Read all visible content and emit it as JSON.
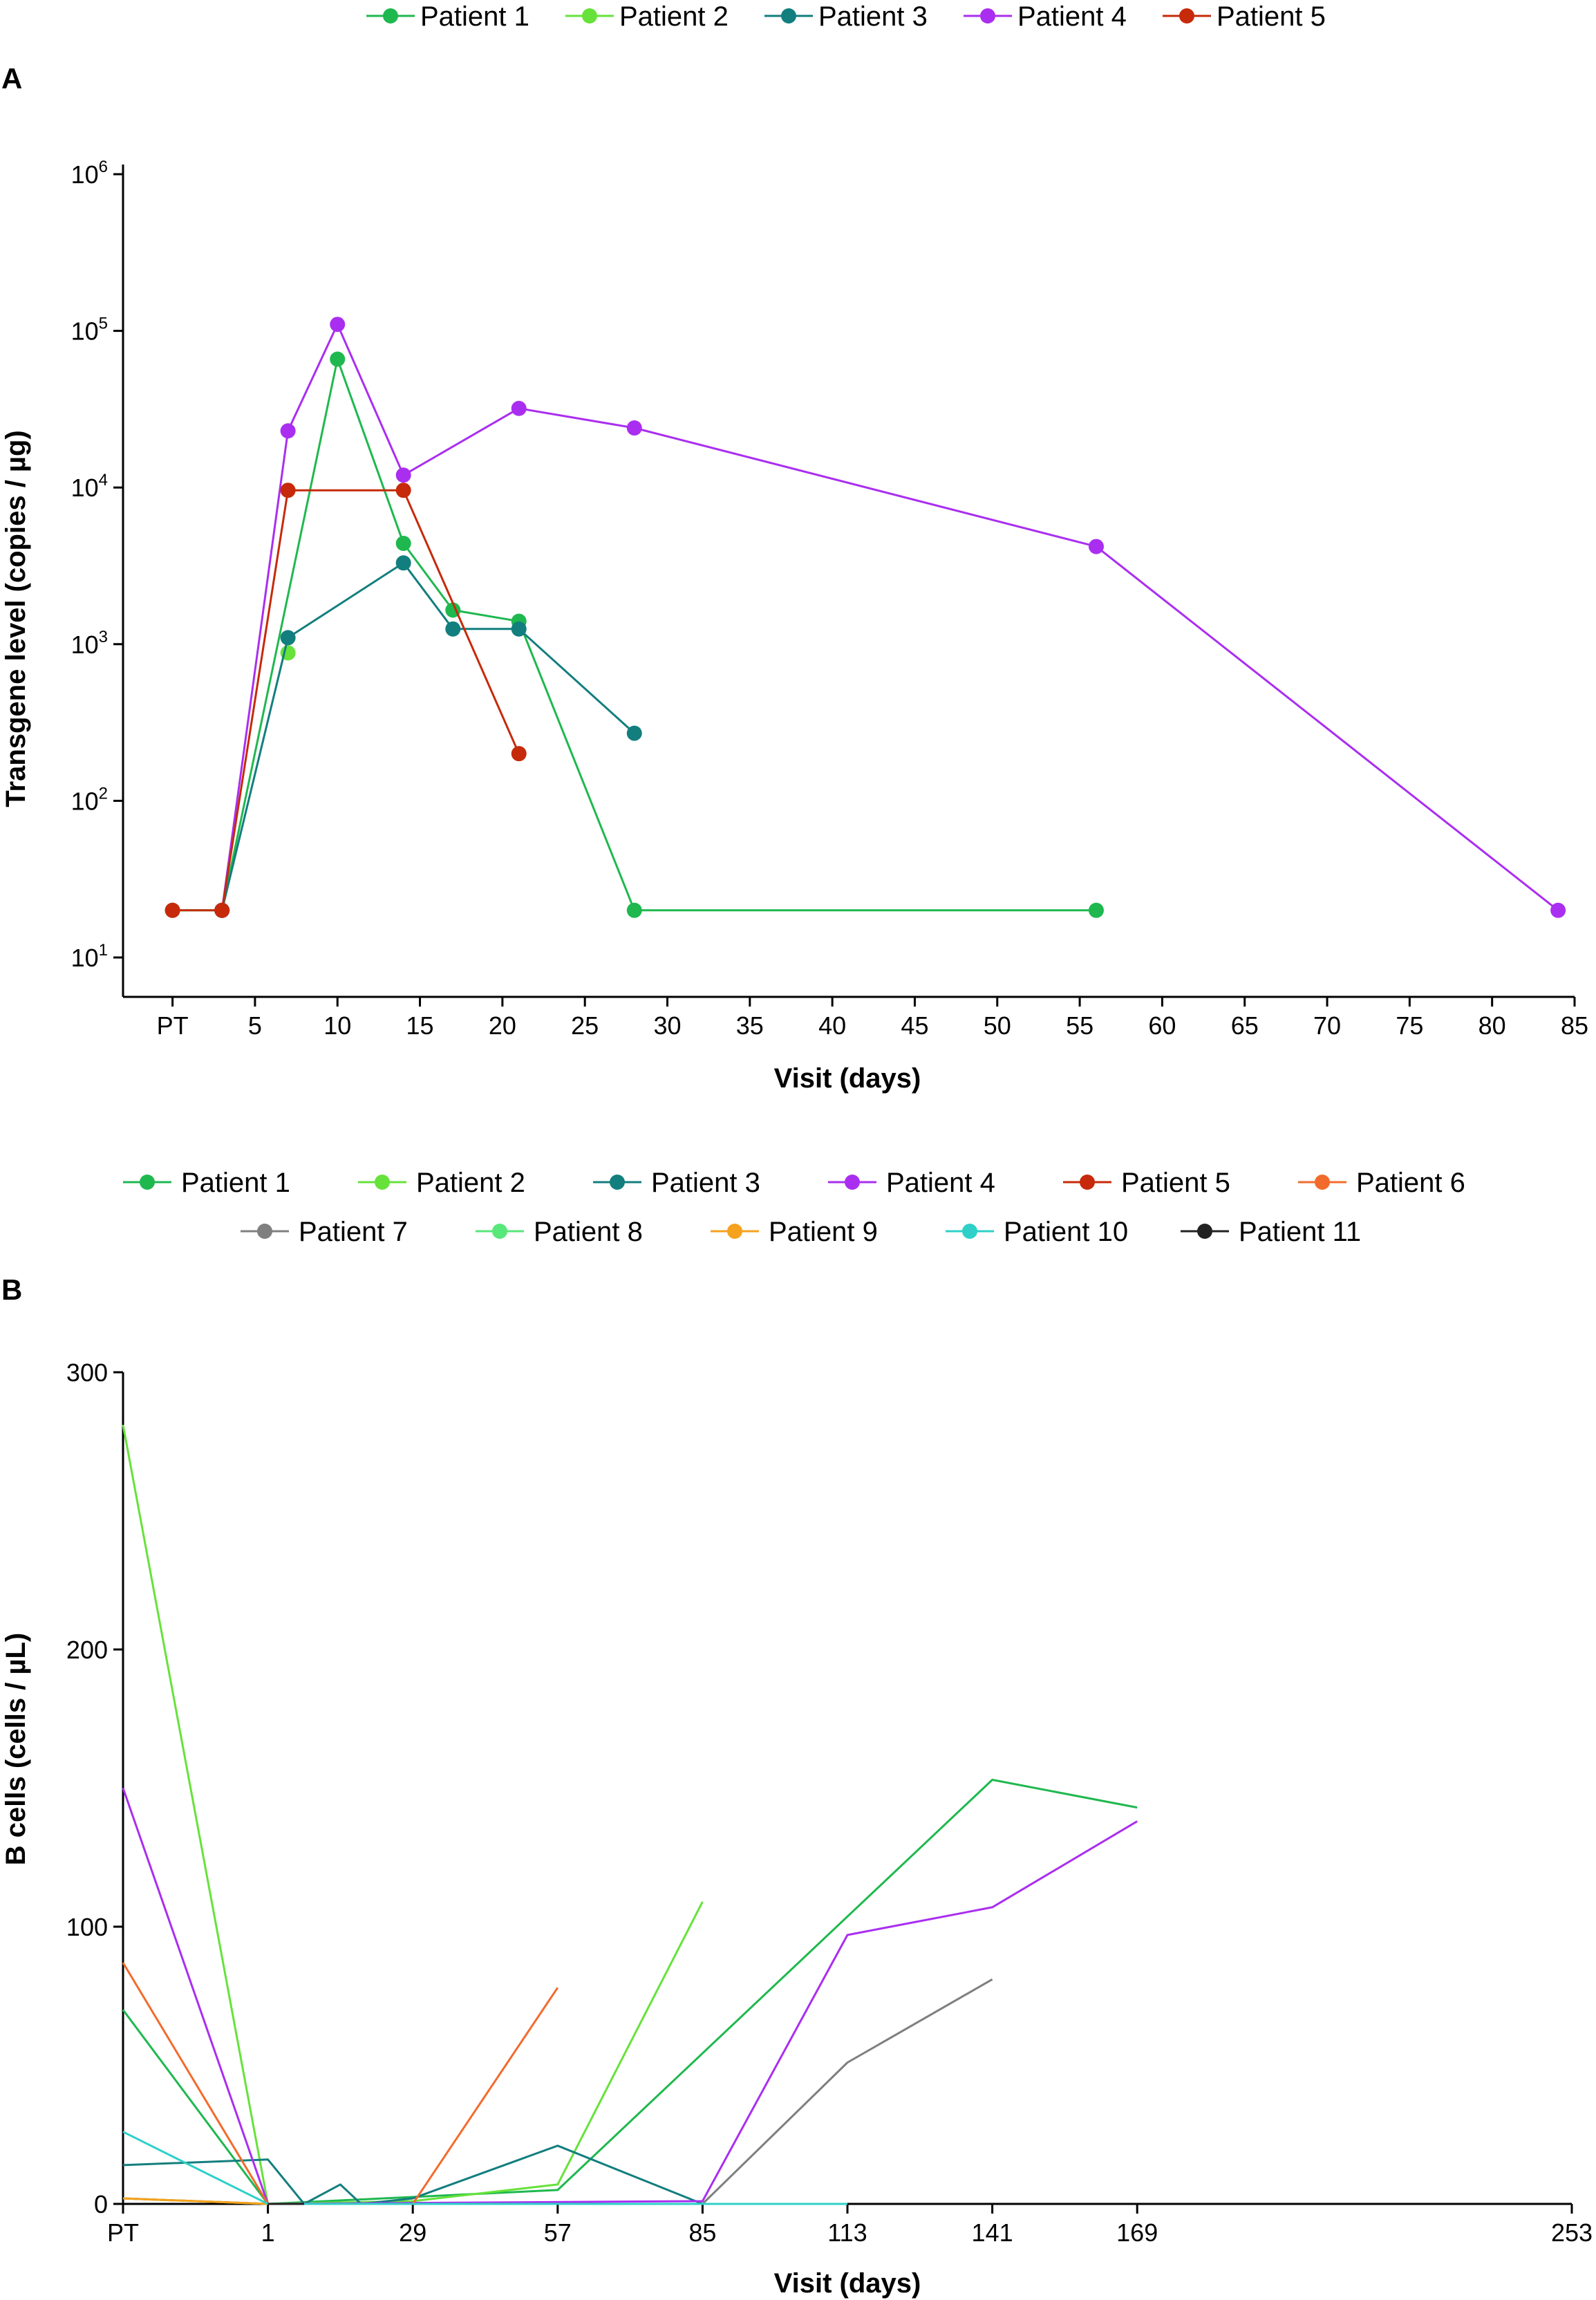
{
  "chart_data": [
    {
      "panel_label": "A",
      "type": "line",
      "scale": "log",
      "xlabel": "Visit (days)",
      "ylabel": "Transgene level (copies / µg)",
      "xlim": [
        -3,
        85
      ],
      "ylim": [
        10,
        1000000
      ],
      "x_ticks": [
        {
          "value": 0,
          "label": "PT"
        },
        {
          "value": 5,
          "label": "5"
        },
        {
          "value": 10,
          "label": "10"
        },
        {
          "value": 15,
          "label": "15"
        },
        {
          "value": 20,
          "label": "20"
        },
        {
          "value": 25,
          "label": "25"
        },
        {
          "value": 30,
          "label": "30"
        },
        {
          "value": 35,
          "label": "35"
        },
        {
          "value": 40,
          "label": "40"
        },
        {
          "value": 45,
          "label": "45"
        },
        {
          "value": 50,
          "label": "50"
        },
        {
          "value": 55,
          "label": "55"
        },
        {
          "value": 60,
          "label": "60"
        },
        {
          "value": 65,
          "label": "65"
        },
        {
          "value": 70,
          "label": "70"
        },
        {
          "value": 75,
          "label": "75"
        },
        {
          "value": 80,
          "label": "80"
        },
        {
          "value": 85,
          "label": "85"
        }
      ],
      "y_ticks": [
        {
          "value": 10,
          "base": "10",
          "exp": "1"
        },
        {
          "value": 100,
          "base": "10",
          "exp": "2"
        },
        {
          "value": 1000,
          "base": "10",
          "exp": "3"
        },
        {
          "value": 10000,
          "base": "10",
          "exp": "4"
        },
        {
          "value": 100000,
          "base": "10",
          "exp": "5"
        },
        {
          "value": 1000000,
          "base": "10",
          "exp": "6"
        }
      ],
      "legend_position": "top",
      "series": [
        {
          "name": "Patient 1",
          "color": "#1fb84f",
          "markers": true,
          "x": [
            0,
            3,
            10,
            14,
            17,
            21,
            28,
            56
          ],
          "y": [
            20,
            20,
            66000,
            4400,
            1650,
            1400,
            20,
            20
          ]
        },
        {
          "name": "Patient 2",
          "color": "#66e23a",
          "markers": true,
          "x": [
            7
          ],
          "y": [
            880
          ]
        },
        {
          "name": "Patient 3",
          "color": "#137e7e",
          "markers": true,
          "x": [
            3,
            7,
            14,
            17,
            21,
            28
          ],
          "y": [
            20,
            1100,
            3300,
            1250,
            1250,
            270
          ]
        },
        {
          "name": "Patient 4",
          "color": "#aa2ef0",
          "markers": true,
          "x": [
            3,
            7,
            10,
            14,
            21,
            28,
            56,
            84
          ],
          "y": [
            20,
            23000,
            110000,
            12000,
            32000,
            24000,
            4200,
            20
          ]
        },
        {
          "name": "Patient 5",
          "color": "#c62a0a",
          "markers": true,
          "x": [
            0,
            3,
            7,
            14,
            21
          ],
          "y": [
            20,
            20,
            9600,
            9600,
            200
          ]
        }
      ]
    },
    {
      "panel_label": "B",
      "type": "line",
      "scale": "linear",
      "xlabel": "Visit (days)",
      "ylabel": "B cells (cells / µL)",
      "xlim": [
        -27,
        253
      ],
      "ylim": [
        0,
        300
      ],
      "x_ticks": [
        {
          "value": -27,
          "label": "PT"
        },
        {
          "value": 1,
          "label": "1"
        },
        {
          "value": 29,
          "label": "29"
        },
        {
          "value": 57,
          "label": "57"
        },
        {
          "value": 85,
          "label": "85"
        },
        {
          "value": 113,
          "label": "113"
        },
        {
          "value": 141,
          "label": "141"
        },
        {
          "value": 169,
          "label": "169"
        },
        {
          "value": 253,
          "label": "253"
        }
      ],
      "y_ticks": [
        {
          "value": 0,
          "label": "0"
        },
        {
          "value": 100,
          "label": "100"
        },
        {
          "value": 200,
          "label": "200"
        },
        {
          "value": 300,
          "label": "300"
        }
      ],
      "legend_position": "top",
      "series": [
        {
          "name": "Patient 1",
          "color": "#1fb84f",
          "x": [
            -27,
            1,
            57,
            141,
            169
          ],
          "y": [
            70,
            0,
            5,
            153,
            143
          ]
        },
        {
          "name": "Patient 2",
          "color": "#66e23a",
          "x": [
            -27,
            1,
            29,
            57,
            85
          ],
          "y": [
            281,
            0,
            1,
            7,
            109
          ]
        },
        {
          "name": "Patient 3",
          "color": "#137e7e",
          "x": [
            -27,
            1,
            8,
            15,
            19,
            29,
            57,
            85
          ],
          "y": [
            14,
            16,
            0,
            7,
            0,
            2,
            21,
            0
          ]
        },
        {
          "name": "Patient 4",
          "color": "#aa2ef0",
          "x": [
            -27,
            1,
            85,
            113,
            141,
            169
          ],
          "y": [
            150,
            0,
            1,
            97,
            107,
            138
          ]
        },
        {
          "name": "Patient 5",
          "color": "#c62a0a",
          "x": [
            -27,
            1
          ],
          "y": [
            2,
            0
          ]
        },
        {
          "name": "Patient 6",
          "color": "#f26b2c",
          "x": [
            -27,
            1,
            29,
            57
          ],
          "y": [
            87,
            0,
            0,
            78
          ]
        },
        {
          "name": "Patient 7",
          "color": "#7f7f7f",
          "x": [
            85,
            113,
            141
          ],
          "y": [
            0,
            51,
            81
          ]
        },
        {
          "name": "Patient 8",
          "color": "#58e87a",
          "x": [
            -27,
            1
          ],
          "y": [
            2,
            0
          ]
        },
        {
          "name": "Patient 9",
          "color": "#f6a21c",
          "x": [
            -27,
            1
          ],
          "y": [
            2,
            0
          ]
        },
        {
          "name": "Patient 10",
          "color": "#2fd0c8",
          "x": [
            -27,
            1,
            85,
            113
          ],
          "y": [
            26,
            0,
            0,
            0
          ]
        },
        {
          "name": "Patient 11",
          "color": "#222222",
          "x": [
            1,
            8
          ],
          "y": [
            0,
            0
          ]
        }
      ]
    }
  ]
}
